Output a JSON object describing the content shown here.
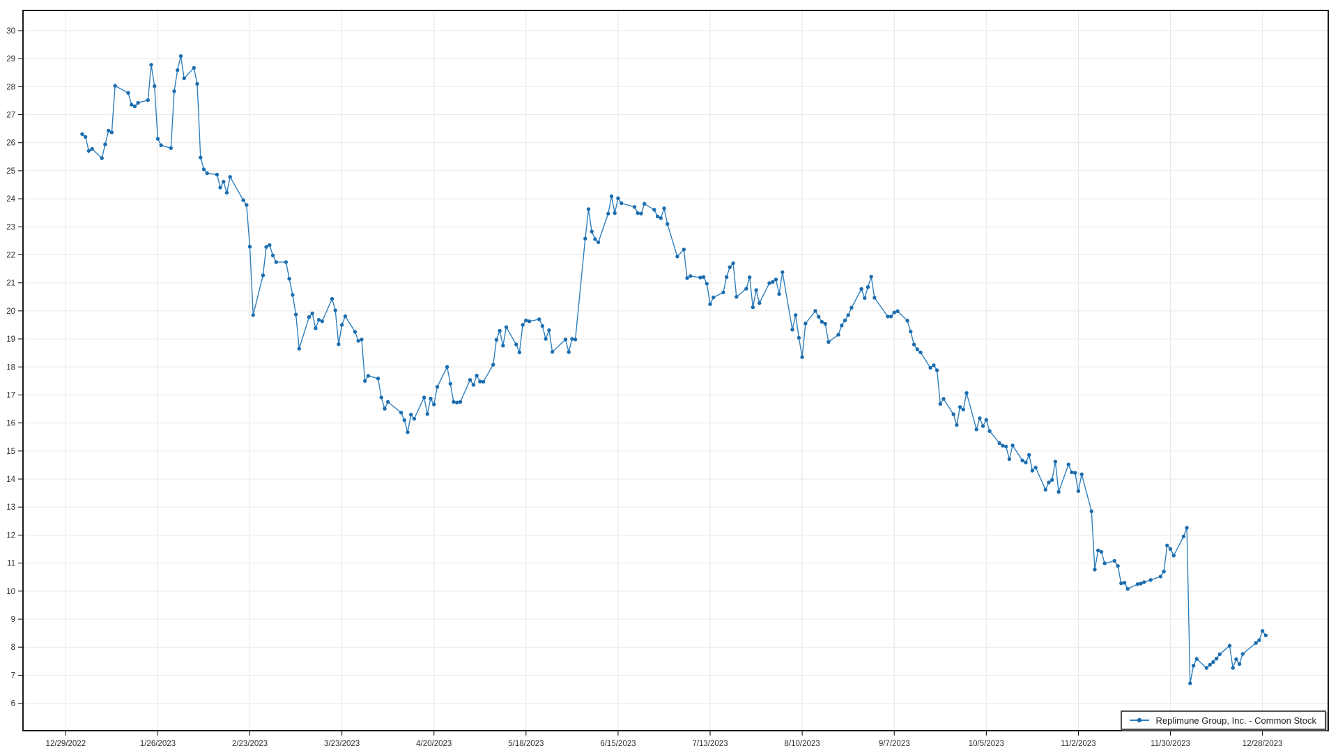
{
  "chart_data": {
    "type": "line",
    "title": "",
    "xlabel": "",
    "ylabel": "",
    "grid": true,
    "legend_position": "bottom-right",
    "colors": {
      "line": "#2e7fbe",
      "marker": "#1b6daf",
      "gridline": "#e7e7e7",
      "axis": "#000000",
      "tick_label": "#2b2b2b",
      "background": "#ffffff",
      "legend_border": "#4f4f4f"
    },
    "ylim": [
      5.02,
      30.72
    ],
    "xlim_dates": [
      "12/16/2022",
      "1/17/2024"
    ],
    "y_ticks": [
      6,
      7,
      8,
      9,
      10,
      11,
      12,
      13,
      14,
      15,
      16,
      17,
      18,
      19,
      20,
      21,
      22,
      23,
      24,
      25,
      26,
      27,
      28,
      29,
      30
    ],
    "x_ticks": [
      "12/29/2022",
      "1/26/2023",
      "2/23/2023",
      "3/23/2023",
      "4/20/2023",
      "5/18/2023",
      "6/15/2023",
      "7/13/2023",
      "8/10/2023",
      "9/7/2023",
      "10/5/2023",
      "11/2/2023",
      "11/30/2023",
      "12/28/2023"
    ],
    "series": [
      {
        "name": "Replimune Group, Inc. - Common Stock",
        "marker": "circle",
        "points": [
          [
            "1/3/2023",
            26.31
          ],
          [
            "1/4/2023",
            26.21
          ],
          [
            "1/5/2023",
            25.71
          ],
          [
            "1/6/2023",
            25.78
          ],
          [
            "1/9/2023",
            25.45
          ],
          [
            "1/10/2023",
            25.94
          ],
          [
            "1/11/2023",
            26.43
          ],
          [
            "1/12/2023",
            26.37
          ],
          [
            "1/13/2023",
            28.03
          ],
          [
            "1/17/2023",
            27.78
          ],
          [
            "1/18/2023",
            27.36
          ],
          [
            "1/19/2023",
            27.3
          ],
          [
            "1/20/2023",
            27.42
          ],
          [
            "1/23/2023",
            27.52
          ],
          [
            "1/24/2023",
            28.78
          ],
          [
            "1/25/2023",
            28.02
          ],
          [
            "1/26/2023",
            26.14
          ],
          [
            "1/27/2023",
            25.91
          ],
          [
            "1/30/2023",
            25.81
          ],
          [
            "1/31/2023",
            27.84
          ],
          [
            "2/1/2023",
            28.59
          ],
          [
            "2/2/2023",
            29.09
          ],
          [
            "2/3/2023",
            28.3
          ],
          [
            "2/6/2023",
            28.67
          ],
          [
            "2/7/2023",
            28.1
          ],
          [
            "2/8/2023",
            25.47
          ],
          [
            "2/9/2023",
            25.05
          ],
          [
            "2/10/2023",
            24.91
          ],
          [
            "2/13/2023",
            24.86
          ],
          [
            "2/14/2023",
            24.4
          ],
          [
            "2/15/2023",
            24.61
          ],
          [
            "2/16/2023",
            24.22
          ],
          [
            "2/17/2023",
            24.78
          ],
          [
            "2/21/2023",
            23.95
          ],
          [
            "2/22/2023",
            23.78
          ],
          [
            "2/23/2023",
            22.29
          ],
          [
            "2/24/2023",
            19.85
          ],
          [
            "2/27/2023",
            21.27
          ],
          [
            "2/28/2023",
            22.28
          ],
          [
            "3/1/2023",
            22.35
          ],
          [
            "3/2/2023",
            21.98
          ],
          [
            "3/3/2023",
            21.74
          ],
          [
            "3/6/2023",
            21.74
          ],
          [
            "3/7/2023",
            21.15
          ],
          [
            "3/8/2023",
            20.57
          ],
          [
            "3/9/2023",
            19.87
          ],
          [
            "3/10/2023",
            18.65
          ],
          [
            "3/13/2023",
            19.78
          ],
          [
            "3/14/2023",
            19.91
          ],
          [
            "3/15/2023",
            19.38
          ],
          [
            "3/16/2023",
            19.68
          ],
          [
            "3/17/2023",
            19.63
          ],
          [
            "3/20/2023",
            20.43
          ],
          [
            "3/21/2023",
            20.02
          ],
          [
            "3/22/2023",
            18.81
          ],
          [
            "3/23/2023",
            19.5
          ],
          [
            "3/24/2023",
            19.81
          ],
          [
            "3/27/2023",
            19.25
          ],
          [
            "3/28/2023",
            18.93
          ],
          [
            "3/29/2023",
            18.98
          ],
          [
            "3/30/2023",
            17.5
          ],
          [
            "3/31/2023",
            17.68
          ],
          [
            "4/3/2023",
            17.59
          ],
          [
            "4/4/2023",
            16.91
          ],
          [
            "4/5/2023",
            16.51
          ],
          [
            "4/6/2023",
            16.75
          ],
          [
            "4/10/2023",
            16.37
          ],
          [
            "4/11/2023",
            16.1
          ],
          [
            "4/12/2023",
            15.67
          ],
          [
            "4/13/2023",
            16.3
          ],
          [
            "4/14/2023",
            16.15
          ],
          [
            "4/17/2023",
            16.91
          ],
          [
            "4/18/2023",
            16.32
          ],
          [
            "4/19/2023",
            16.87
          ],
          [
            "4/20/2023",
            16.66
          ],
          [
            "4/21/2023",
            17.29
          ],
          [
            "4/24/2023",
            18.0
          ],
          [
            "4/25/2023",
            17.4
          ],
          [
            "4/26/2023",
            16.75
          ],
          [
            "4/27/2023",
            16.73
          ],
          [
            "4/28/2023",
            16.75
          ],
          [
            "5/1/2023",
            17.54
          ],
          [
            "5/2/2023",
            17.36
          ],
          [
            "5/3/2023",
            17.69
          ],
          [
            "5/4/2023",
            17.48
          ],
          [
            "5/5/2023",
            17.47
          ],
          [
            "5/8/2023",
            18.08
          ],
          [
            "5/9/2023",
            18.97
          ],
          [
            "5/10/2023",
            19.29
          ],
          [
            "5/11/2023",
            18.76
          ],
          [
            "5/12/2023",
            19.42
          ],
          [
            "5/15/2023",
            18.8
          ],
          [
            "5/16/2023",
            18.52
          ],
          [
            "5/17/2023",
            19.5
          ],
          [
            "5/18/2023",
            19.66
          ],
          [
            "5/19/2023",
            19.63
          ],
          [
            "5/22/2023",
            19.7
          ],
          [
            "5/23/2023",
            19.46
          ],
          [
            "5/24/2023",
            19.0
          ],
          [
            "5/25/2023",
            19.31
          ],
          [
            "5/26/2023",
            18.54
          ],
          [
            "5/30/2023",
            18.98
          ],
          [
            "5/31/2023",
            18.53
          ],
          [
            "6/1/2023",
            19.0
          ],
          [
            "6/2/2023",
            18.98
          ],
          [
            "6/5/2023",
            22.58
          ],
          [
            "6/6/2023",
            23.63
          ],
          [
            "6/7/2023",
            22.83
          ],
          [
            "6/8/2023",
            22.56
          ],
          [
            "6/9/2023",
            22.45
          ],
          [
            "6/12/2023",
            23.47
          ],
          [
            "6/13/2023",
            24.09
          ],
          [
            "6/14/2023",
            23.49
          ],
          [
            "6/15/2023",
            24.02
          ],
          [
            "6/16/2023",
            23.84
          ],
          [
            "6/20/2023",
            23.71
          ],
          [
            "6/21/2023",
            23.49
          ],
          [
            "6/22/2023",
            23.47
          ],
          [
            "6/23/2023",
            23.82
          ],
          [
            "6/26/2023",
            23.61
          ],
          [
            "6/27/2023",
            23.37
          ],
          [
            "6/28/2023",
            23.31
          ],
          [
            "6/29/2023",
            23.66
          ],
          [
            "6/30/2023",
            23.1
          ],
          [
            "7/3/2023",
            21.94
          ],
          [
            "7/5/2023",
            22.19
          ],
          [
            "7/6/2023",
            21.17
          ],
          [
            "7/7/2023",
            21.24
          ],
          [
            "7/10/2023",
            21.19
          ],
          [
            "7/11/2023",
            21.21
          ],
          [
            "7/12/2023",
            20.97
          ],
          [
            "7/13/2023",
            20.24
          ],
          [
            "7/14/2023",
            20.48
          ],
          [
            "7/17/2023",
            20.66
          ],
          [
            "7/18/2023",
            21.21
          ],
          [
            "7/19/2023",
            21.56
          ],
          [
            "7/20/2023",
            21.7
          ],
          [
            "7/21/2023",
            20.5
          ],
          [
            "7/24/2023",
            20.79
          ],
          [
            "7/25/2023",
            21.2
          ],
          [
            "7/26/2023",
            20.13
          ],
          [
            "7/27/2023",
            20.74
          ],
          [
            "7/28/2023",
            20.28
          ],
          [
            "7/31/2023",
            20.99
          ],
          [
            "8/1/2023",
            21.03
          ],
          [
            "8/2/2023",
            21.12
          ],
          [
            "8/3/2023",
            20.6
          ],
          [
            "8/4/2023",
            21.38
          ],
          [
            "8/7/2023",
            19.33
          ],
          [
            "8/8/2023",
            19.85
          ],
          [
            "8/9/2023",
            19.04
          ],
          [
            "8/10/2023",
            18.35
          ],
          [
            "8/11/2023",
            19.55
          ],
          [
            "8/14/2023",
            20.0
          ],
          [
            "8/15/2023",
            19.79
          ],
          [
            "8/16/2023",
            19.61
          ],
          [
            "8/17/2023",
            19.54
          ],
          [
            "8/18/2023",
            18.89
          ],
          [
            "8/21/2023",
            19.15
          ],
          [
            "8/22/2023",
            19.48
          ],
          [
            "8/23/2023",
            19.66
          ],
          [
            "8/24/2023",
            19.85
          ],
          [
            "8/25/2023",
            20.11
          ],
          [
            "8/28/2023",
            20.78
          ],
          [
            "8/29/2023",
            20.46
          ],
          [
            "8/30/2023",
            20.85
          ],
          [
            "8/31/2023",
            21.22
          ],
          [
            "9/1/2023",
            20.47
          ],
          [
            "9/5/2023",
            19.8
          ],
          [
            "9/6/2023",
            19.8
          ],
          [
            "9/7/2023",
            19.94
          ],
          [
            "9/8/2023",
            19.99
          ],
          [
            "9/11/2023",
            19.65
          ],
          [
            "9/12/2023",
            19.26
          ],
          [
            "9/13/2023",
            18.8
          ],
          [
            "9/14/2023",
            18.63
          ],
          [
            "9/15/2023",
            18.52
          ],
          [
            "9/18/2023",
            17.97
          ],
          [
            "9/19/2023",
            18.06
          ],
          [
            "9/20/2023",
            17.88
          ],
          [
            "9/21/2023",
            16.68
          ],
          [
            "9/22/2023",
            16.86
          ],
          [
            "9/25/2023",
            16.31
          ],
          [
            "9/26/2023",
            15.93
          ],
          [
            "9/27/2023",
            16.57
          ],
          [
            "9/28/2023",
            16.48
          ],
          [
            "9/29/2023",
            17.07
          ],
          [
            "10/2/2023",
            15.77
          ],
          [
            "10/3/2023",
            16.17
          ],
          [
            "10/4/2023",
            15.89
          ],
          [
            "10/5/2023",
            16.11
          ],
          [
            "10/6/2023",
            15.71
          ],
          [
            "10/9/2023",
            15.28
          ],
          [
            "10/10/2023",
            15.19
          ],
          [
            "10/11/2023",
            15.16
          ],
          [
            "10/12/2023",
            14.71
          ],
          [
            "10/13/2023",
            15.2
          ],
          [
            "10/16/2023",
            14.66
          ],
          [
            "10/17/2023",
            14.59
          ],
          [
            "10/18/2023",
            14.86
          ],
          [
            "10/19/2023",
            14.3
          ],
          [
            "10/20/2023",
            14.41
          ],
          [
            "10/23/2023",
            13.62
          ],
          [
            "10/24/2023",
            13.88
          ],
          [
            "10/25/2023",
            13.97
          ],
          [
            "10/26/2023",
            14.62
          ],
          [
            "10/27/2023",
            13.54
          ],
          [
            "10/30/2023",
            14.52
          ],
          [
            "10/31/2023",
            14.24
          ],
          [
            "11/1/2023",
            14.22
          ],
          [
            "11/2/2023",
            13.57
          ],
          [
            "11/3/2023",
            14.17
          ],
          [
            "11/6/2023",
            12.85
          ],
          [
            "11/7/2023",
            10.77
          ],
          [
            "11/8/2023",
            11.45
          ],
          [
            "11/9/2023",
            11.4
          ],
          [
            "11/10/2023",
            10.99
          ],
          [
            "11/13/2023",
            11.08
          ],
          [
            "11/14/2023",
            10.9
          ],
          [
            "11/15/2023",
            10.28
          ],
          [
            "11/16/2023",
            10.3
          ],
          [
            "11/17/2023",
            10.08
          ],
          [
            "11/20/2023",
            10.25
          ],
          [
            "11/21/2023",
            10.27
          ],
          [
            "11/22/2023",
            10.32
          ],
          [
            "11/24/2023",
            10.4
          ],
          [
            "11/27/2023",
            10.52
          ],
          [
            "11/28/2023",
            10.7
          ],
          [
            "11/29/2023",
            11.63
          ],
          [
            "11/30/2023",
            11.5
          ],
          [
            "12/1/2023",
            11.27
          ],
          [
            "12/4/2023",
            11.95
          ],
          [
            "12/5/2023",
            12.26
          ],
          [
            "12/6/2023",
            6.71
          ],
          [
            "12/7/2023",
            7.34
          ],
          [
            "12/8/2023",
            7.58
          ],
          [
            "12/11/2023",
            7.26
          ],
          [
            "12/12/2023",
            7.37
          ],
          [
            "12/13/2023",
            7.47
          ],
          [
            "12/14/2023",
            7.59
          ],
          [
            "12/15/2023",
            7.75
          ],
          [
            "12/18/2023",
            8.05
          ],
          [
            "12/19/2023",
            7.26
          ],
          [
            "12/20/2023",
            7.57
          ],
          [
            "12/21/2023",
            7.4
          ],
          [
            "12/22/2023",
            7.76
          ],
          [
            "12/26/2023",
            8.15
          ],
          [
            "12/27/2023",
            8.25
          ],
          [
            "12/28/2023",
            8.58
          ],
          [
            "12/29/2023",
            8.42
          ]
        ]
      }
    ],
    "legend": {
      "label": "Replimune Group, Inc. - Common Stock"
    }
  }
}
